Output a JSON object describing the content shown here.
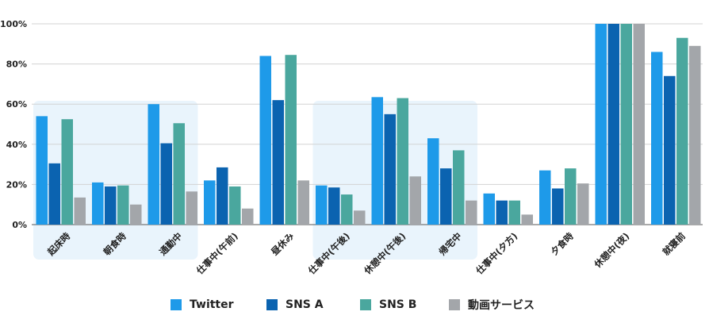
{
  "chart_data": {
    "type": "bar",
    "categories": [
      "起床時",
      "朝食時",
      "通勤中",
      "仕事中(午前)",
      "昼休み",
      "仕事中(午後)",
      "休憩中(午後)",
      "帰宅中",
      "仕事中(夕方)",
      "夕食時",
      "休憩中(夜)",
      "就寝前"
    ],
    "series": [
      {
        "name": "Twitter",
        "color": "#1e9ae9",
        "values": [
          54,
          21,
          60,
          22,
          84,
          19.5,
          63.5,
          43,
          15.5,
          27,
          100,
          86
        ]
      },
      {
        "name": "SNS A",
        "color": "#0b63b0",
        "values": [
          30.5,
          19,
          40.5,
          28.5,
          62,
          18.5,
          55,
          28,
          12,
          18,
          100,
          74
        ]
      },
      {
        "name": "SNS B",
        "color": "#4aa79e",
        "values": [
          52.5,
          19.5,
          50.5,
          19,
          84.5,
          15,
          63,
          37,
          12,
          28,
          100,
          93
        ]
      },
      {
        "name": "動画サービス",
        "color": "#a3a6aa",
        "values": [
          13.5,
          10,
          16.5,
          8,
          22,
          7,
          24,
          12,
          5,
          20.5,
          100,
          89
        ]
      }
    ],
    "yticks": [
      "0%",
      "20%",
      "40%",
      "60%",
      "80%",
      "100%"
    ],
    "ylim": [
      0,
      100
    ],
    "grid": true,
    "legend_position": "bottom",
    "highlight_color": "#e9f4fc",
    "highlight_groups": [
      [
        0,
        2
      ],
      [
        5,
        7
      ]
    ]
  }
}
